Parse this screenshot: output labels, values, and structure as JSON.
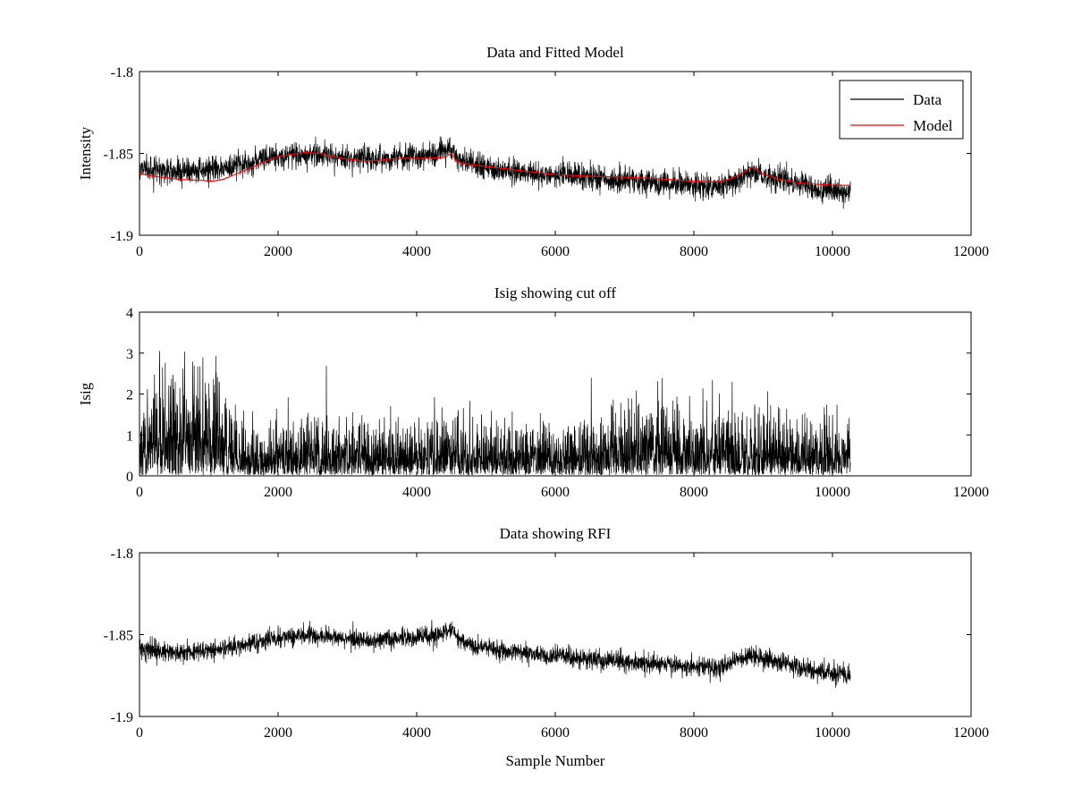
{
  "chart_data": [
    {
      "type": "line",
      "title": "Data and Fitted Model",
      "xlabel": "",
      "ylabel": "Intensity",
      "xlim": [
        0,
        12000
      ],
      "ylim": [
        -1.9,
        -1.8
      ],
      "xticks": [
        0,
        2000,
        4000,
        6000,
        8000,
        10000,
        12000
      ],
      "xtick_labels": [
        "0",
        "2000",
        "4000",
        "6000",
        "8000",
        "10000",
        "12000"
      ],
      "yticks": [
        -1.9,
        -1.85,
        -1.8
      ],
      "ytick_labels": [
        "-1.9",
        "-1.85",
        "-1.8"
      ],
      "legend": {
        "position": "top-right",
        "entries": [
          "Data",
          "Model"
        ]
      },
      "series": [
        {
          "name": "Data",
          "color": "#000000",
          "style": "noisy",
          "noise": 0.0037,
          "spike_prob": 0.006,
          "spike_amp": 0.005,
          "x": [
            0,
            300,
            600,
            900,
            1200,
            1500,
            1800,
            2100,
            2400,
            2700,
            3000,
            3300,
            3600,
            3900,
            4200,
            4400,
            4500,
            4550,
            4650,
            4800,
            5000,
            5500,
            6000,
            6500,
            7000,
            7500,
            8000,
            8300,
            8600,
            8800,
            8850,
            9000,
            9300,
            9600,
            10000,
            10260
          ],
          "y": [
            -1.8585,
            -1.8605,
            -1.8615,
            -1.8605,
            -1.859,
            -1.8565,
            -1.8535,
            -1.8515,
            -1.8505,
            -1.851,
            -1.8525,
            -1.8535,
            -1.853,
            -1.8515,
            -1.851,
            -1.8485,
            -1.847,
            -1.8505,
            -1.854,
            -1.8565,
            -1.858,
            -1.8615,
            -1.863,
            -1.865,
            -1.8665,
            -1.8685,
            -1.8695,
            -1.8705,
            -1.8665,
            -1.8615,
            -1.861,
            -1.8635,
            -1.8665,
            -1.8705,
            -1.8735,
            -1.8745
          ]
        },
        {
          "name": "Model",
          "color": "#ff0000",
          "style": "smooth",
          "x": [
            0,
            300,
            600,
            900,
            1050,
            1200,
            1400,
            1600,
            1800,
            2000,
            2200,
            2400,
            2600,
            2800,
            3000,
            3200,
            3400,
            3600,
            3800,
            4000,
            4200,
            4400,
            4480,
            4500,
            4530,
            4560,
            4650,
            4800,
            5000,
            5300,
            5600,
            6000,
            6500,
            7000,
            7500,
            8000,
            8300,
            8500,
            8700,
            8820,
            8860,
            9000,
            9200,
            9500,
            10000,
            10260
          ],
          "y": [
            -1.8625,
            -1.8645,
            -1.866,
            -1.8665,
            -1.867,
            -1.866,
            -1.8625,
            -1.859,
            -1.855,
            -1.852,
            -1.8505,
            -1.8495,
            -1.85,
            -1.852,
            -1.8535,
            -1.8545,
            -1.8545,
            -1.8535,
            -1.853,
            -1.853,
            -1.853,
            -1.8525,
            -1.8505,
            -1.85,
            -1.8515,
            -1.8545,
            -1.856,
            -1.857,
            -1.858,
            -1.8595,
            -1.861,
            -1.863,
            -1.864,
            -1.8645,
            -1.8655,
            -1.867,
            -1.8675,
            -1.866,
            -1.862,
            -1.8585,
            -1.859,
            -1.8625,
            -1.8655,
            -1.868,
            -1.8695,
            -1.8695
          ]
        }
      ]
    },
    {
      "type": "line",
      "title": "Isig showing cut off",
      "xlabel": "",
      "ylabel": "Isig",
      "xlim": [
        0,
        12000
      ],
      "ylim": [
        0,
        4
      ],
      "xticks": [
        0,
        2000,
        4000,
        6000,
        8000,
        10000,
        12000
      ],
      "xtick_labels": [
        "0",
        "2000",
        "4000",
        "6000",
        "8000",
        "10000",
        "12000"
      ],
      "yticks": [
        0,
        1,
        2,
        3,
        4
      ],
      "ytick_labels": [
        "0",
        "1",
        "2",
        "3",
        "4"
      ],
      "series": [
        {
          "name": "Isig",
          "color": "#000000",
          "style": "abs-noise",
          "x": [
            0,
            200,
            400,
            600,
            800,
            1000,
            1100,
            1200,
            1350,
            1500,
            1700,
            2000,
            2500,
            3000,
            3500,
            4000,
            4500,
            5000,
            5500,
            6000,
            6500,
            7000,
            7500,
            8000,
            8500,
            9000,
            9500,
            10000,
            10260
          ],
          "y": [
            1.05,
            1.1,
            1.1,
            1.05,
            1.05,
            1.15,
            1.15,
            1.0,
            0.7,
            0.55,
            0.5,
            0.55,
            0.6,
            0.55,
            0.55,
            0.55,
            0.6,
            0.55,
            0.6,
            0.55,
            0.65,
            0.75,
            0.8,
            0.7,
            0.7,
            0.65,
            0.6,
            0.6,
            0.6
          ]
        }
      ]
    },
    {
      "type": "line",
      "title": "Data showing RFI",
      "xlabel": "Sample Number",
      "ylabel": "",
      "xlim": [
        0,
        12000
      ],
      "ylim": [
        -1.9,
        -1.8
      ],
      "xticks": [
        0,
        2000,
        4000,
        6000,
        8000,
        10000,
        12000
      ],
      "xtick_labels": [
        "0",
        "2000",
        "4000",
        "6000",
        "8000",
        "10000",
        "12000"
      ],
      "yticks": [
        -1.9,
        -1.85,
        -1.8
      ],
      "ytick_labels": [
        "-1.9",
        "-1.85",
        "-1.8"
      ],
      "series": [
        {
          "name": "Data",
          "color": "#000000",
          "style": "noisy",
          "noise": 0.0029,
          "spike_prob": 0.004,
          "spike_amp": 0.004,
          "x": [
            0,
            300,
            600,
            900,
            1200,
            1500,
            1800,
            2100,
            2400,
            2700,
            3000,
            3300,
            3600,
            3900,
            4200,
            4400,
            4500,
            4550,
            4650,
            4800,
            5000,
            5500,
            6000,
            6500,
            7000,
            7500,
            8000,
            8300,
            8600,
            8800,
            8850,
            9000,
            9300,
            9600,
            10000,
            10260
          ],
          "y": [
            -1.8585,
            -1.8605,
            -1.8615,
            -1.8605,
            -1.859,
            -1.8565,
            -1.8535,
            -1.8515,
            -1.8505,
            -1.851,
            -1.8525,
            -1.8535,
            -1.853,
            -1.8515,
            -1.851,
            -1.8485,
            -1.847,
            -1.8505,
            -1.854,
            -1.8565,
            -1.858,
            -1.8615,
            -1.863,
            -1.865,
            -1.8665,
            -1.8685,
            -1.8695,
            -1.8705,
            -1.8665,
            -1.8625,
            -1.862,
            -1.8645,
            -1.8675,
            -1.871,
            -1.874,
            -1.875
          ]
        }
      ]
    }
  ]
}
